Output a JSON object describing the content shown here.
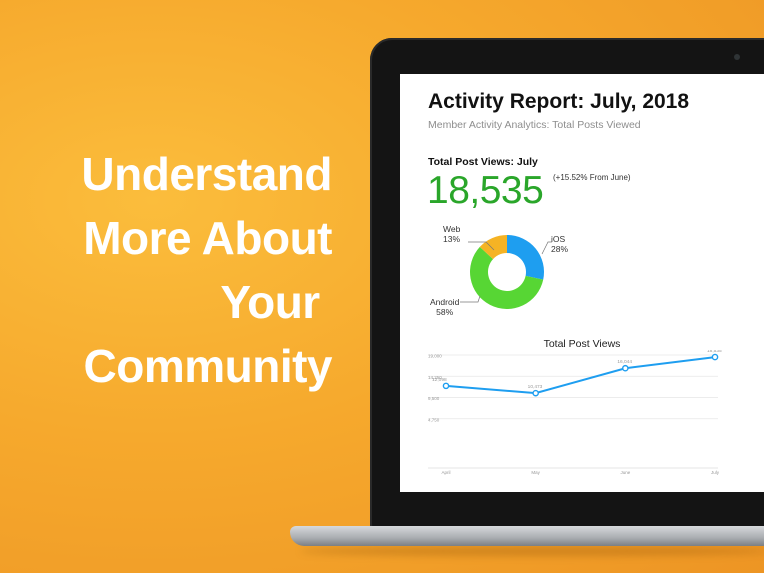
{
  "headline": {
    "text": "Understand\nMore About\nYour \nCommunity"
  },
  "report": {
    "title": "Activity Report: July, 2018",
    "subtitle": "Member Activity Analytics: Total Posts Viewed",
    "metric_label": "Total Post Views: July",
    "metric_value": "18,535",
    "metric_change": "(+15.52% From June)"
  },
  "donut": {
    "colors": {
      "web": "#f5b324",
      "ios": "#1e9ef0",
      "android": "#57d634"
    },
    "labels": {
      "web": {
        "name": "Web",
        "pct": "13%"
      },
      "ios": {
        "name": "iOS",
        "pct": "28%"
      },
      "android": {
        "name": "Android",
        "pct": "58%"
      }
    }
  },
  "chart_data": [
    {
      "type": "pie",
      "categories": [
        "iOS",
        "Android",
        "Web"
      ],
      "values": [
        28,
        58,
        13
      ],
      "colors": [
        "#1e9ef0",
        "#57d634",
        "#f5b324"
      ]
    },
    {
      "type": "line",
      "title": "Total Post Views",
      "categories": [
        "April",
        "May",
        "June",
        "July"
      ],
      "series": [
        {
          "values": [
            12.098,
            10.473,
            16.044,
            18.535
          ],
          "value_labels": [
            "12,098",
            "10,473",
            "16,044",
            "18,535"
          ]
        }
      ],
      "yticks": [
        "4,750",
        "9,500",
        "14,250",
        "19,000"
      ],
      "ylim": [
        0,
        19
      ],
      "color": "#1e9ef0",
      "grid": true
    }
  ]
}
